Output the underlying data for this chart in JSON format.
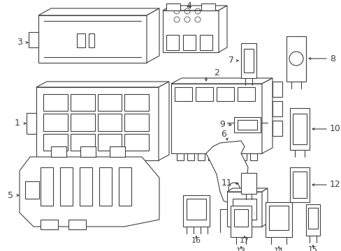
{
  "background_color": "#ffffff",
  "line_color": "#404040",
  "line_width": 0.8,
  "fig_width": 4.89,
  "fig_height": 3.6,
  "dpi": 100
}
